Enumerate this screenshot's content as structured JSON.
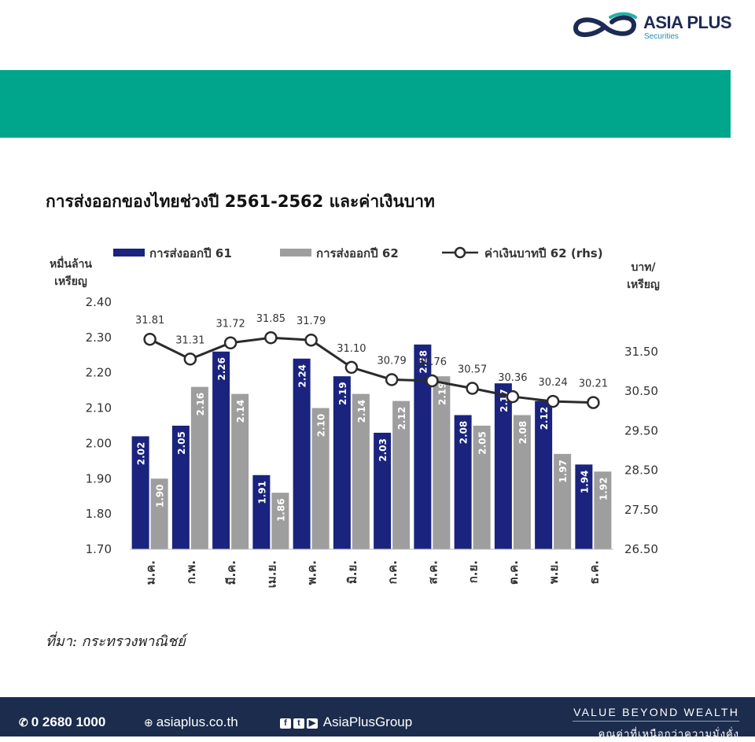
{
  "brand": {
    "name": "ASIA PLUS",
    "sub": "Securities"
  },
  "colors": {
    "band": "#00a68c",
    "footer": "#1b2c4c",
    "series_61": "#1a237e",
    "series_62": "#9e9e9e",
    "line": "#2b2b2b"
  },
  "page_title": "การส่งออกของไทยช่วงปี 2561-2562 และค่าเงินบาท",
  "source_note": "ที่มา: กระทรวงพาณิชย์",
  "chart_data": {
    "type": "bar",
    "categories": [
      "ม.ค.",
      "ก.พ.",
      "มี.ค.",
      "เม.ย.",
      "พ.ค.",
      "มิ.ย.",
      "ก.ค.",
      "ส.ค.",
      "ก.ย.",
      "ต.ค.",
      "พ.ย.",
      "ธ.ค."
    ],
    "series": [
      {
        "name": "การส่งออกปี 61",
        "type": "bar",
        "axis": "left",
        "values": [
          2.02,
          2.05,
          2.26,
          1.91,
          2.24,
          2.19,
          2.03,
          2.28,
          2.08,
          2.17,
          2.12,
          1.94
        ]
      },
      {
        "name": "การส่งออกปี 62",
        "type": "bar",
        "axis": "left",
        "values": [
          1.9,
          2.16,
          2.14,
          1.86,
          2.1,
          2.14,
          2.12,
          2.19,
          2.05,
          2.08,
          1.97,
          1.92
        ]
      },
      {
        "name": "ค่าเงินบาทปี 62 (rhs)",
        "type": "line",
        "axis": "right",
        "values": [
          31.81,
          31.31,
          31.72,
          31.85,
          31.79,
          31.1,
          30.79,
          30.76,
          30.57,
          30.36,
          30.24,
          30.21
        ]
      }
    ],
    "ylabel_left": [
      "หมื่นล้าน",
      "เหรียญ"
    ],
    "ylabel_right": [
      "บาท/",
      "เหรียญ"
    ],
    "ylim_left": [
      1.7,
      2.4
    ],
    "yticks_left": [
      "2.40",
      "2.30",
      "2.20",
      "2.10",
      "2.00",
      "1.90",
      "1.80",
      "1.70"
    ],
    "ylim_right": [
      26.5,
      32.75
    ],
    "yticks_right": [
      "31.50",
      "30.50",
      "29.50",
      "28.50",
      "27.50",
      "26.50"
    ],
    "grid": false,
    "legend": "top"
  },
  "footer": {
    "phone": "0 2680 1000",
    "website": "asiaplus.co.th",
    "social": "AsiaPlusGroup",
    "slogan": "VALUE BEYOND WEALTH",
    "slogan_th": "คุณค่าที่เหนือกว่าความมั่งคั่ง"
  }
}
